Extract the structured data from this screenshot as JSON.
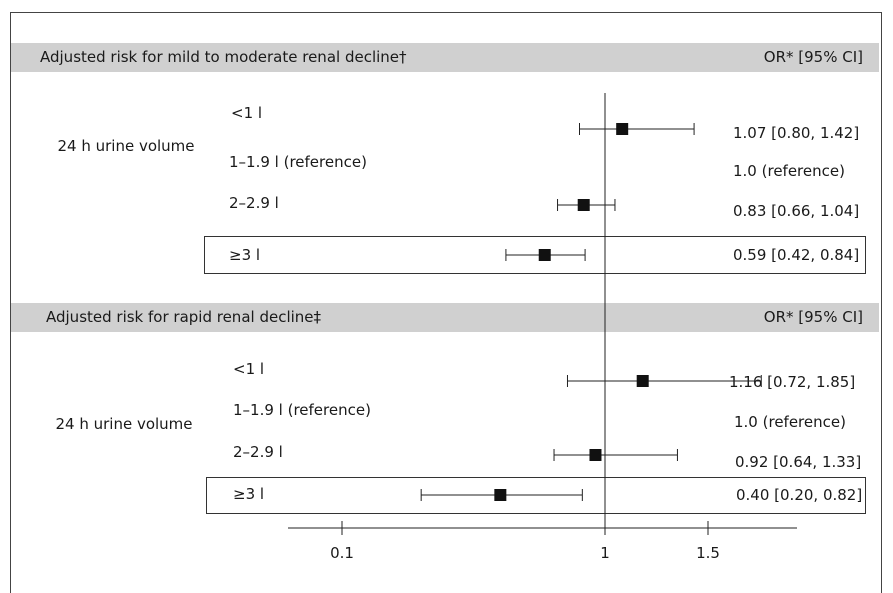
{
  "chart_data": {
    "type": "forest",
    "x_scale": "log",
    "reference_value": 1,
    "x_ticks": [
      0.1,
      1,
      1.5
    ],
    "x_tick_labels": [
      "0.1",
      "1",
      "1.5"
    ],
    "panels": [
      {
        "title": "Adjusted risk for mild to moderate renal decline†",
        "column_header": "OR* [95% CI]",
        "group_label": "24 h urine volume",
        "rows": [
          {
            "label": "<1 l",
            "or": 1.07,
            "low": 0.8,
            "high": 1.42,
            "text": "1.07 [0.80, 1.42]",
            "highlight": false
          },
          {
            "label": "1–1.9 l (reference)",
            "or": null,
            "low": null,
            "high": null,
            "text": "1.0 (reference)",
            "highlight": false
          },
          {
            "label": "2–2.9 l",
            "or": 0.83,
            "low": 0.66,
            "high": 1.04,
            "text": "0.83 [0.66, 1.04]",
            "highlight": false
          },
          {
            "label": "≥3 l",
            "or": 0.59,
            "low": 0.42,
            "high": 0.84,
            "text": "0.59 [0.42, 0.84]",
            "highlight": true
          }
        ]
      },
      {
        "title": "Adjusted risk for rapid renal decline‡",
        "column_header": "OR* [95% CI]",
        "group_label": "24 h urine volume",
        "rows": [
          {
            "label": "<1 l",
            "or": 1.16,
            "low": 0.72,
            "high": 1.85,
            "text": "1.16 [0.72, 1.85]",
            "highlight": false
          },
          {
            "label": "1–1.9 l (reference)",
            "or": null,
            "low": null,
            "high": null,
            "text": "1.0 (reference)",
            "highlight": false
          },
          {
            "label": "2–2.9 l",
            "or": 0.92,
            "low": 0.64,
            "high": 1.33,
            "text": "0.92 [0.64, 1.33]",
            "highlight": false
          },
          {
            "label": "≥3 l",
            "or": 0.4,
            "low": 0.2,
            "high": 0.82,
            "text": "0.40 [0.20, 0.82]",
            "highlight": true
          }
        ]
      }
    ]
  }
}
